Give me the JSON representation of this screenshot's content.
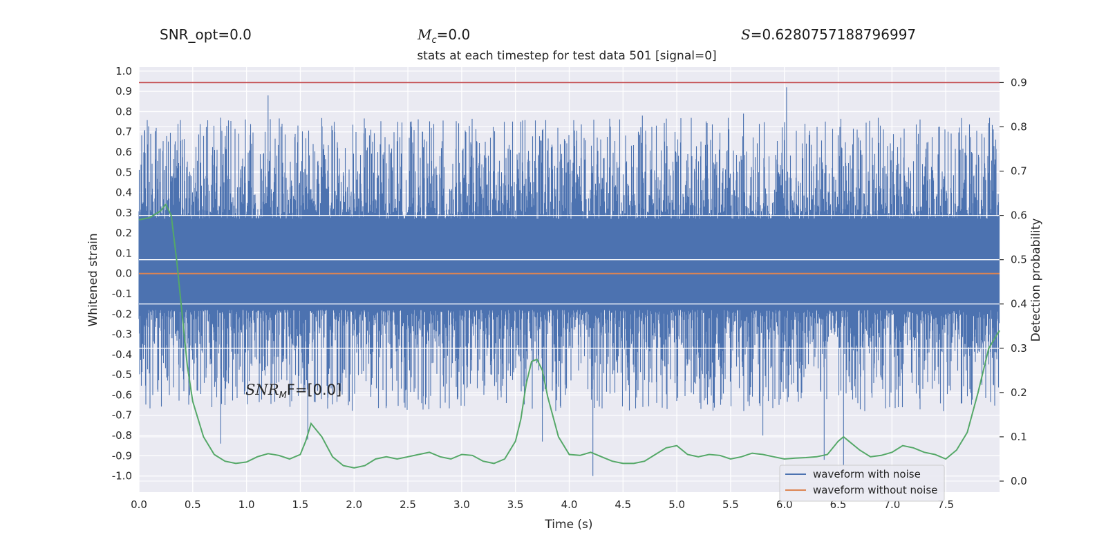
{
  "header": {
    "snr_opt": "SNR_opt=0.0",
    "mc_symbol": "M",
    "mc_sub": "c",
    "mc_value": "=0.0",
    "s_symbol": "S",
    "s_value": "=0.6280757188796997",
    "snr_mf_symbol": "SNR",
    "snr_mf_sub": "M",
    "snr_mf_tail": "F=[0.0]"
  },
  "colors": {
    "noise": "#4c72b0",
    "clean": "#dd8452",
    "prob": "#55a868",
    "threshold": "#c44e52",
    "axes_bg": "#eaeaf2",
    "grid": "#ffffff"
  },
  "chart_data": {
    "type": "line",
    "title": "stats at each timestep for test data 501 [signal=0]",
    "xlabel": "Time (s)",
    "ylabel_left": "Whitened strain",
    "ylabel_right": "Detection probability",
    "xlim": [
      0.0,
      8.0
    ],
    "ylim_left": [
      -1.08,
      1.02
    ],
    "ylim_right": [
      -0.025,
      0.935
    ],
    "xticks": [
      "0.0",
      "0.5",
      "1.0",
      "1.5",
      "2.0",
      "2.5",
      "3.0",
      "3.5",
      "4.0",
      "4.5",
      "5.0",
      "5.5",
      "6.0",
      "6.5",
      "7.0",
      "7.5"
    ],
    "yticks_left": [
      "1.0",
      "0.9",
      "0.8",
      "0.7",
      "0.6",
      "0.5",
      "0.4",
      "0.3",
      "0.2",
      "0.1",
      "0.0",
      "-0.1",
      "-0.2",
      "-0.3",
      "-0.4",
      "-0.5",
      "-0.6",
      "-0.7",
      "-0.8",
      "-0.9",
      "-1.0"
    ],
    "yticks_right": [
      "0.9",
      "0.8",
      "0.7",
      "0.6",
      "0.5",
      "0.4",
      "0.3",
      "0.2",
      "0.1",
      "0.0"
    ],
    "grid": true,
    "legend_position": "lower-right",
    "threshold": 0.9,
    "series": [
      {
        "name": "waveform with noise",
        "axis": "left",
        "envelope_peaks": [
          {
            "x": 0.76,
            "y": 0.77
          },
          {
            "x": 1.2,
            "y": 0.88
          },
          {
            "x": 1.33,
            "y": 0.74
          },
          {
            "x": 3.55,
            "y": 0.75
          },
          {
            "x": 4.68,
            "y": 0.78
          },
          {
            "x": 6.02,
            "y": 0.92
          },
          {
            "x": 5.62,
            "y": 0.79
          },
          {
            "x": 0.76,
            "y": -0.84
          },
          {
            "x": 1.57,
            "y": -0.82
          },
          {
            "x": 3.75,
            "y": -0.83
          },
          {
            "x": 4.22,
            "y": -1.0
          },
          {
            "x": 6.37,
            "y": -0.92
          },
          {
            "x": 6.55,
            "y": -0.95
          },
          {
            "x": 5.8,
            "y": -0.8
          }
        ]
      },
      {
        "name": "waveform without noise",
        "axis": "left",
        "x": [
          0,
          8
        ],
        "y": [
          0.0,
          0.0
        ]
      },
      {
        "name": "",
        "axis": "right",
        "x": [
          0.0,
          0.1,
          0.2,
          0.25,
          0.3,
          0.35,
          0.4,
          0.45,
          0.5,
          0.6,
          0.7,
          0.8,
          0.9,
          1.0,
          1.1,
          1.2,
          1.3,
          1.4,
          1.5,
          1.55,
          1.6,
          1.7,
          1.8,
          1.9,
          2.0,
          2.1,
          2.2,
          2.3,
          2.4,
          2.5,
          2.6,
          2.7,
          2.8,
          2.9,
          3.0,
          3.1,
          3.2,
          3.3,
          3.4,
          3.5,
          3.55,
          3.6,
          3.65,
          3.7,
          3.75,
          3.8,
          3.9,
          4.0,
          4.1,
          4.2,
          4.3,
          4.4,
          4.5,
          4.6,
          4.7,
          4.8,
          4.9,
          5.0,
          5.1,
          5.2,
          5.3,
          5.4,
          5.5,
          5.6,
          5.7,
          5.8,
          5.9,
          6.0,
          6.1,
          6.2,
          6.3,
          6.4,
          6.5,
          6.55,
          6.6,
          6.7,
          6.8,
          6.9,
          7.0,
          7.1,
          7.2,
          7.3,
          7.4,
          7.5,
          7.6,
          7.7,
          7.8,
          7.9,
          8.0
        ],
        "y": [
          0.59,
          0.595,
          0.61,
          0.625,
          0.6,
          0.5,
          0.38,
          0.26,
          0.18,
          0.1,
          0.06,
          0.045,
          0.04,
          0.043,
          0.055,
          0.062,
          0.058,
          0.05,
          0.06,
          0.09,
          0.13,
          0.1,
          0.055,
          0.035,
          0.03,
          0.035,
          0.05,
          0.055,
          0.05,
          0.055,
          0.06,
          0.065,
          0.055,
          0.05,
          0.06,
          0.058,
          0.045,
          0.04,
          0.05,
          0.09,
          0.14,
          0.22,
          0.27,
          0.275,
          0.25,
          0.19,
          0.1,
          0.06,
          0.058,
          0.065,
          0.055,
          0.045,
          0.04,
          0.04,
          0.045,
          0.06,
          0.075,
          0.08,
          0.06,
          0.055,
          0.06,
          0.058,
          0.05,
          0.055,
          0.063,
          0.06,
          0.055,
          0.05,
          0.052,
          0.053,
          0.055,
          0.06,
          0.09,
          0.1,
          0.09,
          0.07,
          0.055,
          0.058,
          0.065,
          0.08,
          0.075,
          0.065,
          0.06,
          0.05,
          0.07,
          0.11,
          0.2,
          0.3,
          0.34
        ]
      }
    ]
  }
}
